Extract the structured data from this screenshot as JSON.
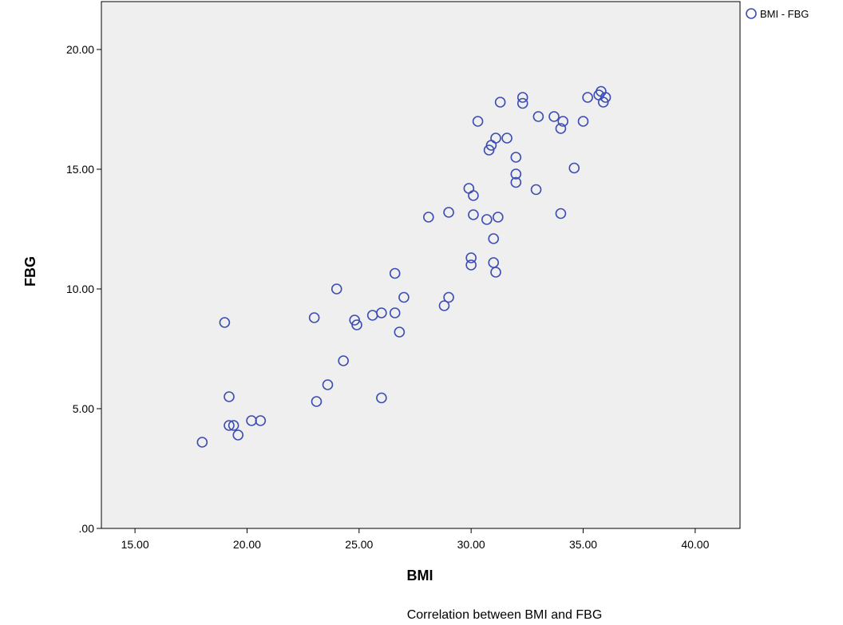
{
  "chart_data": {
    "type": "scatter",
    "title": "",
    "xlabel": "BMI",
    "ylabel": "FBG",
    "caption": "Correlation between BMI and FBG",
    "xlim": [
      13.5,
      42
    ],
    "ylim": [
      0,
      22
    ],
    "x_ticks": [
      "15.00",
      "20.00",
      "25.00",
      "30.00",
      "35.00",
      "40.00"
    ],
    "y_ticks": [
      ".00",
      "5.00",
      "10.00",
      "15.00",
      "20.00"
    ],
    "legend_position": "top-right",
    "grid": false,
    "colors": {
      "plot_background": "#efefef",
      "marker": "#3d4db3"
    },
    "series": [
      {
        "name": "BMI - FBG",
        "points": [
          [
            18.0,
            3.6
          ],
          [
            19.0,
            8.6
          ],
          [
            19.2,
            4.3
          ],
          [
            19.2,
            5.5
          ],
          [
            19.4,
            4.3
          ],
          [
            19.6,
            3.9
          ],
          [
            20.2,
            4.5
          ],
          [
            20.6,
            4.5
          ],
          [
            23.0,
            8.8
          ],
          [
            23.1,
            5.3
          ],
          [
            23.6,
            6.0
          ],
          [
            24.0,
            10.0
          ],
          [
            24.3,
            7.0
          ],
          [
            24.8,
            8.7
          ],
          [
            24.9,
            8.5
          ],
          [
            25.6,
            8.9
          ],
          [
            26.0,
            9.0
          ],
          [
            26.0,
            5.45
          ],
          [
            26.6,
            9.0
          ],
          [
            26.6,
            10.65
          ],
          [
            26.8,
            8.2
          ],
          [
            27.0,
            9.65
          ],
          [
            28.1,
            13.0
          ],
          [
            28.8,
            9.3
          ],
          [
            29.0,
            9.65
          ],
          [
            29.0,
            13.2
          ],
          [
            29.9,
            14.2
          ],
          [
            30.0,
            11.3
          ],
          [
            30.0,
            11.0
          ],
          [
            30.1,
            13.1
          ],
          [
            30.1,
            13.9
          ],
          [
            30.3,
            17.0
          ],
          [
            30.7,
            12.9
          ],
          [
            30.8,
            15.8
          ],
          [
            30.9,
            16.0
          ],
          [
            31.0,
            12.1
          ],
          [
            31.0,
            11.1
          ],
          [
            31.1,
            10.7
          ],
          [
            31.1,
            16.3
          ],
          [
            31.2,
            13.0
          ],
          [
            31.3,
            17.8
          ],
          [
            31.6,
            16.3
          ],
          [
            32.0,
            15.5
          ],
          [
            32.0,
            14.8
          ],
          [
            32.0,
            14.45
          ],
          [
            32.3,
            18.0
          ],
          [
            32.3,
            17.75
          ],
          [
            32.9,
            14.15
          ],
          [
            33.0,
            17.2
          ],
          [
            33.7,
            17.2
          ],
          [
            34.0,
            16.7
          ],
          [
            34.0,
            13.15
          ],
          [
            34.1,
            17.0
          ],
          [
            34.6,
            15.05
          ],
          [
            35.0,
            17.0
          ],
          [
            35.2,
            18.0
          ],
          [
            35.7,
            18.1
          ],
          [
            35.8,
            18.25
          ],
          [
            35.9,
            17.8
          ],
          [
            36.0,
            18.0
          ]
        ]
      }
    ]
  }
}
